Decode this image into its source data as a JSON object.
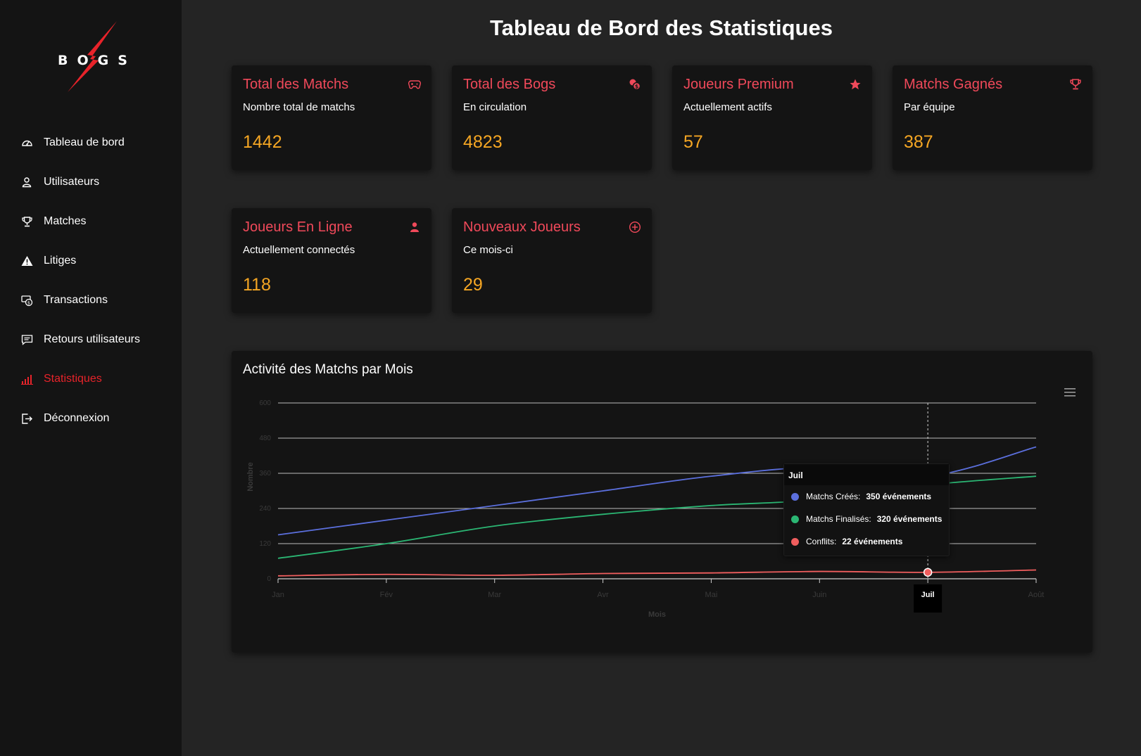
{
  "brand": {
    "letters": [
      "B",
      "O",
      "G",
      "S"
    ]
  },
  "sidebar": {
    "items": [
      {
        "label": "Tableau de bord",
        "icon": "dashboard-gauge-icon",
        "active": false
      },
      {
        "label": "Utilisateurs",
        "icon": "user-icon",
        "active": false
      },
      {
        "label": "Matches",
        "icon": "trophy-icon",
        "active": false
      },
      {
        "label": "Litiges",
        "icon": "warning-icon",
        "active": false
      },
      {
        "label": "Transactions",
        "icon": "money-icon",
        "active": false
      },
      {
        "label": "Retours utilisateurs",
        "icon": "comment-icon",
        "active": false
      },
      {
        "label": "Statistiques",
        "icon": "bar-chart-icon",
        "active": true
      },
      {
        "label": "Déconnexion",
        "icon": "logout-icon",
        "active": false
      }
    ]
  },
  "page": {
    "title": "Tableau de Bord des Statistiques"
  },
  "cards": [
    {
      "title": "Total des Matchs",
      "subtitle": "Nombre total de matchs",
      "value": "1442",
      "icon": "gamepad-icon"
    },
    {
      "title": "Total des Bogs",
      "subtitle": "En circulation",
      "value": "4823",
      "icon": "coins-icon"
    },
    {
      "title": "Joueurs Premium",
      "subtitle": "Actuellement actifs",
      "value": "57",
      "icon": "star-icon"
    },
    {
      "title": "Matchs Gagnés",
      "subtitle": "Par équipe",
      "value": "387",
      "icon": "trophy-icon"
    },
    {
      "title": "Joueurs En Ligne",
      "subtitle": "Actuellement connectés",
      "value": "118",
      "icon": "user-icon"
    },
    {
      "title": "Nouveaux Joueurs",
      "subtitle": "Ce mois-ci",
      "value": "29",
      "icon": "plus-circle-icon"
    }
  ],
  "colors": {
    "accent": "#e8232a",
    "card_title": "#f0495a",
    "card_value": "#f5a623",
    "series_created": "#5b6fdd",
    "series_finalized": "#2bb673",
    "series_conflicts": "#f05e5e"
  },
  "chart_data": {
    "type": "line",
    "title": "Activité des Matchs par Mois",
    "xlabel": "Mois",
    "ylabel": "Nombre",
    "categories": [
      "Jan",
      "Fév",
      "Mar",
      "Avr",
      "Mai",
      "Juin",
      "Juil",
      "Août"
    ],
    "ylim": [
      0,
      600
    ],
    "yticks": [
      0,
      120,
      240,
      360,
      480,
      600
    ],
    "grid": true,
    "series": [
      {
        "name": "Matchs Créés",
        "values": [
          150,
          200,
          250,
          300,
          350,
          380,
          350,
          450
        ]
      },
      {
        "name": "Matchs Finalisés",
        "values": [
          70,
          120,
          180,
          220,
          250,
          270,
          320,
          350
        ]
      },
      {
        "name": "Conflits",
        "values": [
          10,
          15,
          12,
          18,
          20,
          25,
          22,
          30
        ]
      }
    ],
    "tooltip": {
      "category": "Juil",
      "unit": "événements",
      "entries": [
        {
          "label": "Matchs Créés:",
          "value": "350 événements"
        },
        {
          "label": "Matchs Finalisés:",
          "value": "320 événements"
        },
        {
          "label": "Conflits:",
          "value": "22 événements"
        }
      ]
    },
    "highlight_index": 6
  }
}
